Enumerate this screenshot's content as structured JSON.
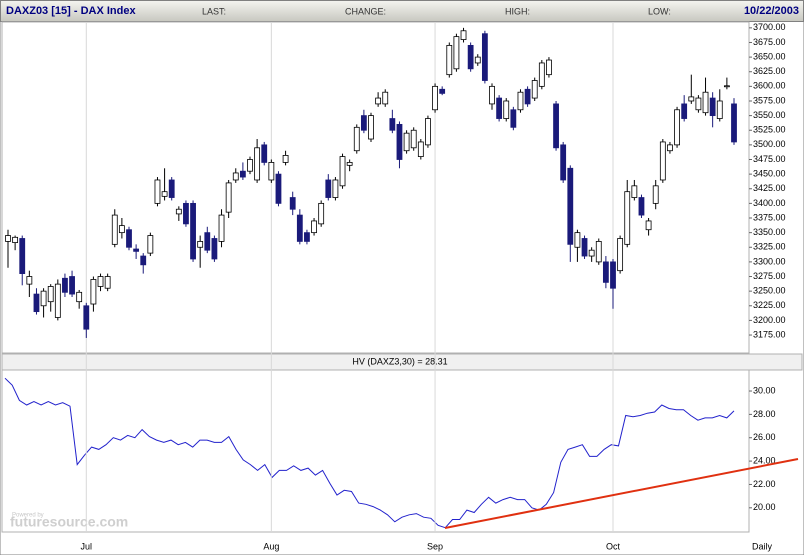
{
  "chart_data": [
    {
      "type": "candlestick",
      "title": "DAXZ03 [15] - DAX Index",
      "fields": [
        "LAST:",
        "CHANGE:",
        "HIGH:",
        "LOW:"
      ],
      "date": "10/22/2003",
      "frequency": "Daily",
      "watermark": [
        "Powered by",
        "futuresource.com"
      ],
      "up_color": "#ffffff",
      "down_color": "#1a1a7a",
      "categories": [
        null,
        null,
        null,
        null,
        null,
        null,
        null,
        null,
        null,
        null,
        null,
        "Jul",
        null,
        null,
        null,
        null,
        null,
        null,
        null,
        null,
        null,
        null,
        null,
        null,
        null,
        null,
        null,
        null,
        null,
        null,
        null,
        null,
        null,
        null,
        null,
        null,
        null,
        "Aug",
        null,
        null,
        null,
        null,
        null,
        null,
        null,
        null,
        null,
        null,
        null,
        null,
        null,
        null,
        null,
        null,
        null,
        null,
        null,
        null,
        null,
        null,
        "Sep",
        null,
        null,
        null,
        null,
        null,
        null,
        null,
        null,
        null,
        null,
        null,
        null,
        null,
        null,
        null,
        null,
        null,
        null,
        null,
        null,
        null,
        null,
        null,
        null,
        "Oct",
        null,
        null,
        null,
        null,
        null,
        null,
        null,
        null,
        null,
        null,
        null,
        null,
        null,
        null,
        null,
        null,
        null
      ],
      "candles": [
        [
          3335,
          3355,
          3290,
          3345
        ],
        [
          3333,
          3345,
          3320,
          3342
        ],
        [
          3340,
          3345,
          3260,
          3280
        ],
        [
          3262,
          3285,
          3240,
          3275
        ],
        [
          3245,
          3255,
          3210,
          3215
        ],
        [
          3225,
          3255,
          3205,
          3250
        ],
        [
          3232,
          3262,
          3215,
          3258
        ],
        [
          3205,
          3270,
          3200,
          3262
        ],
        [
          3272,
          3280,
          3240,
          3248
        ],
        [
          3275,
          3285,
          3240,
          3245
        ],
        [
          3232,
          3252,
          3220,
          3248
        ],
        [
          3225,
          3230,
          3170,
          3185
        ],
        [
          3228,
          3275,
          3215,
          3270
        ],
        [
          3258,
          3280,
          3250,
          3275
        ],
        [
          3255,
          3280,
          3250,
          3275
        ],
        [
          3330,
          3390,
          3325,
          3380
        ],
        [
          3350,
          3375,
          3340,
          3362
        ],
        [
          3355,
          3360,
          3320,
          3325
        ],
        [
          3322,
          3330,
          3305,
          3318
        ],
        [
          3310,
          3315,
          3280,
          3295
        ],
        [
          3315,
          3350,
          3310,
          3345
        ],
        [
          3400,
          3445,
          3395,
          3440
        ],
        [
          3412,
          3460,
          3405,
          3420
        ],
        [
          3440,
          3445,
          3405,
          3410
        ],
        [
          3382,
          3395,
          3370,
          3390
        ],
        [
          3400,
          3405,
          3360,
          3365
        ],
        [
          3400,
          3405,
          3300,
          3305
        ],
        [
          3325,
          3345,
          3290,
          3335
        ],
        [
          3350,
          3360,
          3315,
          3320
        ],
        [
          3340,
          3345,
          3300,
          3305
        ],
        [
          3335,
          3390,
          3325,
          3380
        ],
        [
          3385,
          3440,
          3375,
          3435
        ],
        [
          3440,
          3460,
          3435,
          3452
        ],
        [
          3455,
          3470,
          3440,
          3445
        ],
        [
          3455,
          3480,
          3450,
          3475
        ],
        [
          3440,
          3510,
          3435,
          3495
        ],
        [
          3500,
          3505,
          3465,
          3470
        ],
        [
          3440,
          3475,
          3435,
          3470
        ],
        [
          3450,
          3455,
          3395,
          3400
        ],
        [
          3470,
          3490,
          3465,
          3482
        ],
        [
          3410,
          3420,
          3380,
          3390
        ],
        [
          3380,
          3390,
          3330,
          3335
        ],
        [
          3350,
          3355,
          3330,
          3335
        ],
        [
          3350,
          3375,
          3345,
          3370
        ],
        [
          3365,
          3405,
          3360,
          3400
        ],
        [
          3440,
          3450,
          3405,
          3410
        ],
        [
          3410,
          3445,
          3405,
          3440
        ],
        [
          3430,
          3485,
          3425,
          3480
        ],
        [
          3465,
          3475,
          3455,
          3470
        ],
        [
          3490,
          3535,
          3485,
          3530
        ],
        [
          3550,
          3560,
          3520,
          3525
        ],
        [
          3510,
          3555,
          3505,
          3550
        ],
        [
          3570,
          3590,
          3565,
          3580
        ],
        [
          3570,
          3595,
          3565,
          3590
        ],
        [
          3545,
          3560,
          3520,
          3525
        ],
        [
          3535,
          3540,
          3460,
          3475
        ],
        [
          3490,
          3525,
          3485,
          3520
        ],
        [
          3495,
          3530,
          3490,
          3525
        ],
        [
          3480,
          3510,
          3475,
          3505
        ],
        [
          3500,
          3550,
          3495,
          3545
        ],
        [
          3560,
          3605,
          3555,
          3600
        ],
        [
          3595,
          3600,
          3585,
          3588
        ],
        [
          3620,
          3675,
          3615,
          3670
        ],
        [
          3630,
          3690,
          3625,
          3685
        ],
        [
          3680,
          3700,
          3675,
          3695
        ],
        [
          3670,
          3675,
          3625,
          3630
        ],
        [
          3640,
          3655,
          3635,
          3650
        ],
        [
          3690,
          3695,
          3605,
          3610
        ],
        [
          3570,
          3605,
          3560,
          3600
        ],
        [
          3580,
          3585,
          3540,
          3545
        ],
        [
          3545,
          3580,
          3540,
          3575
        ],
        [
          3560,
          3565,
          3525,
          3530
        ],
        [
          3560,
          3595,
          3555,
          3590
        ],
        [
          3595,
          3600,
          3565,
          3570
        ],
        [
          3580,
          3615,
          3575,
          3610
        ],
        [
          3600,
          3645,
          3595,
          3640
        ],
        [
          3620,
          3650,
          3615,
          3645
        ],
        [
          3570,
          3575,
          3490,
          3495
        ],
        [
          3500,
          3505,
          3435,
          3440
        ],
        [
          3460,
          3465,
          3300,
          3330
        ],
        [
          3325,
          3355,
          3300,
          3350
        ],
        [
          3340,
          3345,
          3305,
          3310
        ],
        [
          3310,
          3325,
          3300,
          3320
        ],
        [
          3300,
          3340,
          3295,
          3335
        ],
        [
          3300,
          3310,
          3255,
          3265
        ],
        [
          3300,
          3305,
          3220,
          3255
        ],
        [
          3285,
          3345,
          3280,
          3340
        ],
        [
          3330,
          3440,
          3325,
          3420
        ],
        [
          3410,
          3440,
          3405,
          3430
        ],
        [
          3410,
          3415,
          3375,
          3380
        ],
        [
          3355,
          3375,
          3345,
          3370
        ],
        [
          3400,
          3440,
          3390,
          3430
        ],
        [
          3440,
          3510,
          3435,
          3505
        ],
        [
          3490,
          3505,
          3485,
          3500
        ],
        [
          3500,
          3565,
          3495,
          3560
        ],
        [
          3570,
          3585,
          3540,
          3545
        ],
        [
          3575,
          3620,
          3570,
          3582
        ],
        [
          3560,
          3585,
          3555,
          3580
        ],
        [
          3555,
          3615,
          3550,
          3590
        ],
        [
          3580,
          3590,
          3530,
          3550
        ],
        [
          3545,
          3595,
          3540,
          3575
        ],
        [
          3600,
          3615,
          3595,
          3601
        ],
        [
          3570,
          3580,
          3500,
          3505
        ]
      ],
      "ylim": [
        3146,
        3710
      ],
      "yticks": [
        {
          "value": 3175,
          "label": "3175.00"
        },
        {
          "value": 3200,
          "label": "3200.00"
        },
        {
          "value": 3225,
          "label": "3225.00"
        },
        {
          "value": 3250,
          "label": "3250.00"
        },
        {
          "value": 3275,
          "label": "3275.00"
        },
        {
          "value": 3300,
          "label": "3300.00"
        },
        {
          "value": 3325,
          "label": "3325.00"
        },
        {
          "value": 3350,
          "label": "3350.00"
        },
        {
          "value": 3375,
          "label": "3375.00"
        },
        {
          "value": 3400,
          "label": "3400.00"
        },
        {
          "value": 3425,
          "label": "3425.00"
        },
        {
          "value": 3450,
          "label": "3450.00"
        },
        {
          "value": 3475,
          "label": "3475.00"
        },
        {
          "value": 3500,
          "label": "3500.00"
        },
        {
          "value": 3525,
          "label": "3525.00"
        },
        {
          "value": 3550,
          "label": "3550.00"
        },
        {
          "value": 3575,
          "label": "3575.00"
        },
        {
          "value": 3600,
          "label": "3600.00"
        },
        {
          "value": 3625,
          "label": "3625.00"
        },
        {
          "value": 3650,
          "label": "3650.00"
        },
        {
          "value": 3675,
          "label": "3675.00"
        },
        {
          "value": 3700,
          "label": "3700.00"
        }
      ]
    },
    {
      "type": "line",
      "title": "HV (DAXZ3,30) = 28.31",
      "color": "#2222cc",
      "values": [
        31.1,
        30.5,
        29.2,
        28.8,
        29.1,
        28.8,
        29.1,
        28.8,
        29.0,
        28.7,
        23.7,
        24.5,
        25.2,
        25.0,
        25.4,
        26.0,
        25.8,
        26.2,
        26.0,
        26.7,
        26.1,
        25.8,
        25.6,
        25.8,
        25.4,
        25.6,
        25.2,
        25.8,
        25.8,
        25.6,
        25.6,
        26.1,
        25.0,
        24.1,
        23.7,
        23.2,
        23.7,
        22.6,
        23.2,
        23.2,
        23.6,
        23.2,
        23.4,
        22.8,
        23.2,
        22.1,
        21.1,
        21.5,
        21.4,
        20.4,
        20.3,
        20.1,
        19.8,
        19.4,
        18.8,
        19.2,
        19.4,
        19.5,
        19.2,
        19.1,
        18.5,
        18.3,
        19.0,
        19.0,
        19.8,
        19.6,
        20.3,
        20.9,
        20.4,
        20.7,
        20.9,
        20.7,
        20.7,
        20.0,
        19.8,
        20.3,
        21.3,
        23.9,
        25.0,
        25.2,
        25.4,
        24.4,
        24.4,
        25.0,
        25.4,
        25.3,
        27.9,
        27.8,
        27.9,
        28.1,
        28.2,
        28.8,
        28.5,
        28.4,
        28.4,
        27.9,
        27.5,
        27.7,
        27.7,
        27.9,
        27.7,
        28.3
      ],
      "ylim": [
        18.1,
        31.8
      ],
      "yticks": [
        {
          "value": 20,
          "label": "20.00"
        },
        {
          "value": 22,
          "label": "22.00"
        },
        {
          "value": 24,
          "label": "24.00"
        },
        {
          "value": 26,
          "label": "26.00"
        },
        {
          "value": 28,
          "label": "28.00"
        },
        {
          "value": 30,
          "label": "30.00"
        }
      ]
    }
  ]
}
